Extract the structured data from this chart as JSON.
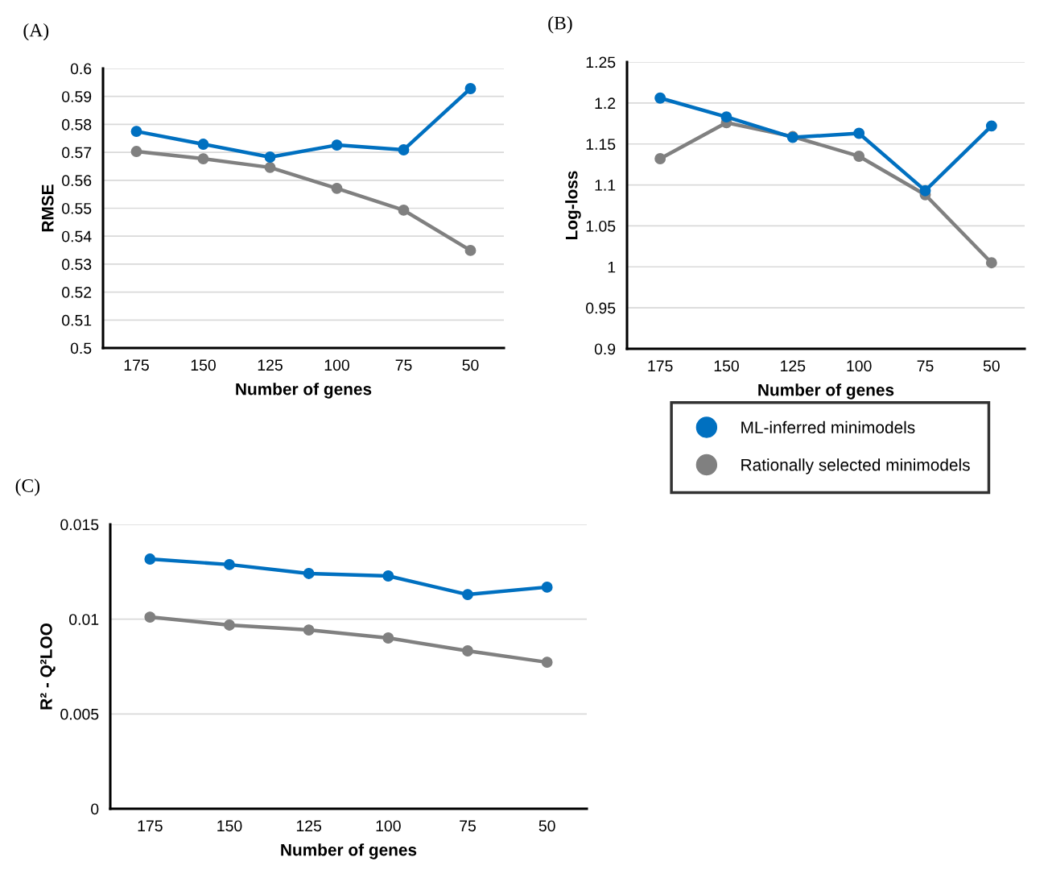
{
  "chart_data": [
    {
      "type": "line",
      "title": "(A)",
      "categories": [
        "175",
        "150",
        "125",
        "100",
        "75",
        "50"
      ],
      "xlabel": "Number of genes",
      "ylabel": "RMSE",
      "ylim": [
        0.5,
        0.6
      ],
      "yticks": [
        0.5,
        0.51,
        0.52,
        0.53,
        0.54,
        0.55,
        0.56,
        0.57,
        0.58,
        0.59,
        0.6
      ],
      "grid": "y",
      "marker": "circle",
      "legend": false,
      "series": [
        {
          "color": "#0070c0",
          "values": [
            0.5775,
            0.5729,
            0.5683,
            0.5726,
            0.5709,
            0.5928
          ]
        },
        {
          "color": "#808080",
          "values": [
            0.5703,
            0.5677,
            0.5646,
            0.5571,
            0.5493,
            0.5349
          ]
        }
      ]
    },
    {
      "type": "line",
      "title": "(B)",
      "categories": [
        "175",
        "150",
        "125",
        "100",
        "75",
        "50"
      ],
      "xlabel": "Number of genes",
      "ylabel": "Log-loss",
      "ylim": [
        0.9,
        1.25
      ],
      "yticks": [
        0.9,
        0.95,
        1,
        1.05,
        1.1,
        1.15,
        1.2,
        1.25
      ],
      "grid": "y",
      "marker": "circle",
      "legend": false,
      "series": [
        {
          "color": "#0070c0",
          "values": [
            1.206,
            1.183,
            1.158,
            1.163,
            1.093,
            1.172
          ]
        },
        {
          "color": "#808080",
          "values": [
            1.132,
            1.176,
            1.159,
            1.135,
            1.088,
            1.005
          ]
        }
      ]
    },
    {
      "type": "line",
      "title": "(C)",
      "categories": [
        "175",
        "150",
        "125",
        "100",
        "75",
        "50"
      ],
      "xlabel": "Number of genes",
      "ylabel": "R² - Q²LOO",
      "ylim": [
        0,
        0.015
      ],
      "yticks": [
        0,
        0.005,
        0.01,
        0.015
      ],
      "grid": "y",
      "marker": "circle",
      "legend": "right",
      "series": [
        {
          "name": "ML-inferred minimodels",
          "color": "#0070c0",
          "values": [
            0.01317,
            0.01288,
            0.01241,
            0.01228,
            0.0113,
            0.01169
          ]
        },
        {
          "name": "Rationally selected minimodels",
          "color": "#808080",
          "values": [
            0.01011,
            0.00969,
            0.00943,
            0.00901,
            0.00833,
            0.00773
          ]
        }
      ]
    }
  ]
}
